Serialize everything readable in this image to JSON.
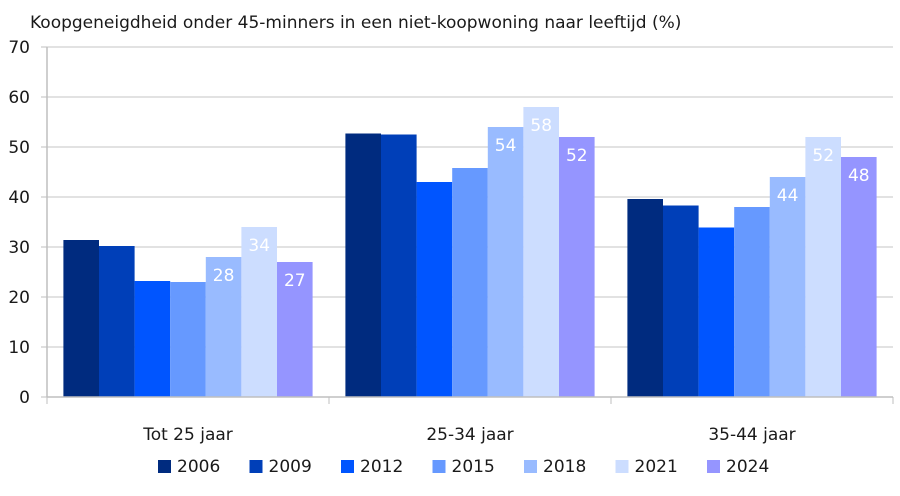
{
  "chart_data": {
    "type": "bar",
    "title": "Koopgeneigdheid onder 45-minners in een niet-koopwoning naar leeftijd (%)",
    "xlabel": "",
    "ylabel": "",
    "ylim": [
      0,
      70
    ],
    "yticks": [
      "0",
      "10",
      "20",
      "30",
      "40",
      "50",
      "60",
      "70"
    ],
    "grid": true,
    "legend_position": "bottom",
    "categories": [
      "Tot 25 jaar",
      "25-34 jaar",
      "35-44 jaar"
    ],
    "series": [
      {
        "name": "2006",
        "color": "#002b7f",
        "values": [
          31.4,
          52.7,
          39.6
        ],
        "labels": [
          null,
          null,
          null
        ]
      },
      {
        "name": "2009",
        "color": "#003fb8",
        "values": [
          30.2,
          52.5,
          38.3
        ],
        "labels": [
          null,
          null,
          null
        ]
      },
      {
        "name": "2012",
        "color": "#0055ff",
        "values": [
          23.2,
          43.0,
          33.9
        ],
        "labels": [
          null,
          null,
          null
        ]
      },
      {
        "name": "2015",
        "color": "#6699ff",
        "values": [
          23.0,
          45.8,
          38.0
        ],
        "labels": [
          null,
          null,
          null
        ]
      },
      {
        "name": "2018",
        "color": "#99bbff",
        "values": [
          28,
          54,
          44
        ],
        "labels": [
          "28",
          "54",
          "44"
        ]
      },
      {
        "name": "2021",
        "color": "#ccddff",
        "values": [
          34,
          58,
          52
        ],
        "labels": [
          "34",
          "58",
          "52"
        ]
      },
      {
        "name": "2024",
        "color": "#9595ff",
        "values": [
          27,
          52,
          48
        ],
        "labels": [
          "27",
          "52",
          "48"
        ]
      }
    ]
  }
}
